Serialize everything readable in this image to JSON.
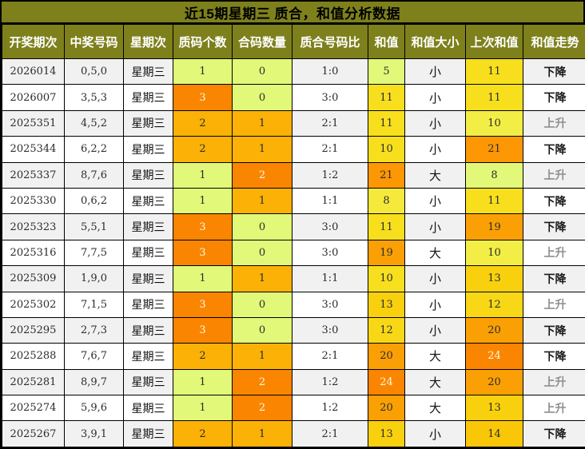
{
  "title": "近15期星期三 质合，和值分析数据",
  "palette": {
    "olive_header": "#7E801C",
    "stripe_gray": "#F1F1F1",
    "stripe_white": "#FFFFFF",
    "lime": "#E2F879",
    "yellow_8": "#F5E93C",
    "yellow_10": "#F2EE45",
    "yellow_11": "#F7DF1E",
    "yellow_12": "#F8D816",
    "gold_13": "#F9D00E",
    "gold_14": "#FAC708",
    "amber": "#FBB105",
    "orange_19_20": "#FBA004",
    "orange_21": "#FD9703",
    "deep_orange": "#FA8500",
    "trend_down_text": "#1A1A1A",
    "trend_up_text": "#8F8F8F",
    "header_text": "#FFFFFF",
    "title_text": "#000000"
  },
  "table": {
    "headers": [
      "开奖期次",
      "中奖号码",
      "星期次",
      "质码个数",
      "合码数量",
      "质合号码比",
      "和值",
      "和值大小",
      "上次和值",
      "和值走势"
    ],
    "rows": [
      {
        "period": "2026014",
        "numbers": "0,5,0",
        "week": "星期三",
        "prime": {
          "v": "1",
          "bg": "#E2F879"
        },
        "comp": {
          "v": "0",
          "bg": "#E2F879"
        },
        "ratio": "1:0",
        "sum": {
          "v": "5",
          "bg": "#E2F879"
        },
        "size": "小",
        "last": {
          "v": "11",
          "bg": "#F7DF1E"
        },
        "trend": "下降",
        "trend_dir": "down"
      },
      {
        "period": "2026007",
        "numbers": "3,5,3",
        "week": "星期三",
        "prime": {
          "v": "3",
          "bg": "#FA8500",
          "light": true
        },
        "comp": {
          "v": "0",
          "bg": "#E2F879"
        },
        "ratio": "3:0",
        "sum": {
          "v": "11",
          "bg": "#F7DF1E"
        },
        "size": "小",
        "last": {
          "v": "11",
          "bg": "#F7DF1E"
        },
        "trend": "下降",
        "trend_dir": "down"
      },
      {
        "period": "2025351",
        "numbers": "4,5,2",
        "week": "星期三",
        "prime": {
          "v": "2",
          "bg": "#FBB105"
        },
        "comp": {
          "v": "1",
          "bg": "#FBB105"
        },
        "ratio": "2:1",
        "sum": {
          "v": "11",
          "bg": "#F7DF1E"
        },
        "size": "小",
        "last": {
          "v": "10",
          "bg": "#F2EE45"
        },
        "trend": "上升",
        "trend_dir": "up"
      },
      {
        "period": "2025344",
        "numbers": "6,2,2",
        "week": "星期三",
        "prime": {
          "v": "2",
          "bg": "#FBB105"
        },
        "comp": {
          "v": "1",
          "bg": "#FBB105"
        },
        "ratio": "2:1",
        "sum": {
          "v": "10",
          "bg": "#F7DF1E"
        },
        "size": "小",
        "last": {
          "v": "21",
          "bg": "#FD9703"
        },
        "trend": "下降",
        "trend_dir": "down"
      },
      {
        "period": "2025337",
        "numbers": "8,7,6",
        "week": "星期三",
        "prime": {
          "v": "1",
          "bg": "#E2F879"
        },
        "comp": {
          "v": "2",
          "bg": "#FA8500",
          "light": true
        },
        "ratio": "1:2",
        "sum": {
          "v": "21",
          "bg": "#FD9703"
        },
        "size": "大",
        "last": {
          "v": "8",
          "bg": "#E2F879"
        },
        "trend": "上升",
        "trend_dir": "up"
      },
      {
        "period": "2025330",
        "numbers": "0,6,2",
        "week": "星期三",
        "prime": {
          "v": "1",
          "bg": "#E2F879"
        },
        "comp": {
          "v": "1",
          "bg": "#FBB105"
        },
        "ratio": "1:1",
        "sum": {
          "v": "8",
          "bg": "#F5E93C"
        },
        "size": "小",
        "last": {
          "v": "11",
          "bg": "#F7DF1E"
        },
        "trend": "下降",
        "trend_dir": "down"
      },
      {
        "period": "2025323",
        "numbers": "5,5,1",
        "week": "星期三",
        "prime": {
          "v": "3",
          "bg": "#FA8500",
          "light": true
        },
        "comp": {
          "v": "0",
          "bg": "#E2F879"
        },
        "ratio": "3:0",
        "sum": {
          "v": "11",
          "bg": "#F7DF1E"
        },
        "size": "小",
        "last": {
          "v": "19",
          "bg": "#FBA004"
        },
        "trend": "下降",
        "trend_dir": "down"
      },
      {
        "period": "2025316",
        "numbers": "7,7,5",
        "week": "星期三",
        "prime": {
          "v": "3",
          "bg": "#FA8500",
          "light": true
        },
        "comp": {
          "v": "0",
          "bg": "#E2F879"
        },
        "ratio": "3:0",
        "sum": {
          "v": "19",
          "bg": "#FBA004"
        },
        "size": "大",
        "last": {
          "v": "10",
          "bg": "#F2EE45"
        },
        "trend": "上升",
        "trend_dir": "up"
      },
      {
        "period": "2025309",
        "numbers": "1,9,0",
        "week": "星期三",
        "prime": {
          "v": "1",
          "bg": "#E2F879"
        },
        "comp": {
          "v": "1",
          "bg": "#FBB105"
        },
        "ratio": "1:1",
        "sum": {
          "v": "10",
          "bg": "#F7DF1E"
        },
        "size": "小",
        "last": {
          "v": "13",
          "bg": "#F9D00E"
        },
        "trend": "下降",
        "trend_dir": "down"
      },
      {
        "period": "2025302",
        "numbers": "7,1,5",
        "week": "星期三",
        "prime": {
          "v": "3",
          "bg": "#FA8500",
          "light": true
        },
        "comp": {
          "v": "0",
          "bg": "#E2F879"
        },
        "ratio": "3:0",
        "sum": {
          "v": "13",
          "bg": "#F9D00E"
        },
        "size": "小",
        "last": {
          "v": "12",
          "bg": "#F8D816"
        },
        "trend": "上升",
        "trend_dir": "up"
      },
      {
        "period": "2025295",
        "numbers": "2,7,3",
        "week": "星期三",
        "prime": {
          "v": "3",
          "bg": "#FA8500",
          "light": true
        },
        "comp": {
          "v": "0",
          "bg": "#E2F879"
        },
        "ratio": "3:0",
        "sum": {
          "v": "12",
          "bg": "#F8D816"
        },
        "size": "小",
        "last": {
          "v": "20",
          "bg": "#FBA004"
        },
        "trend": "下降",
        "trend_dir": "down"
      },
      {
        "period": "2025288",
        "numbers": "7,6,7",
        "week": "星期三",
        "prime": {
          "v": "2",
          "bg": "#FBB105"
        },
        "comp": {
          "v": "1",
          "bg": "#FBB105"
        },
        "ratio": "2:1",
        "sum": {
          "v": "20",
          "bg": "#FBA004"
        },
        "size": "大",
        "last": {
          "v": "24",
          "bg": "#FA8500",
          "light": true
        },
        "trend": "下降",
        "trend_dir": "down"
      },
      {
        "period": "2025281",
        "numbers": "8,9,7",
        "week": "星期三",
        "prime": {
          "v": "1",
          "bg": "#E2F879"
        },
        "comp": {
          "v": "2",
          "bg": "#FA8500",
          "light": true
        },
        "ratio": "1:2",
        "sum": {
          "v": "24",
          "bg": "#FA8500",
          "light": true
        },
        "size": "大",
        "last": {
          "v": "20",
          "bg": "#FBA004"
        },
        "trend": "上升",
        "trend_dir": "up"
      },
      {
        "period": "2025274",
        "numbers": "5,9,6",
        "week": "星期三",
        "prime": {
          "v": "1",
          "bg": "#E2F879"
        },
        "comp": {
          "v": "2",
          "bg": "#FA8500",
          "light": true
        },
        "ratio": "1:2",
        "sum": {
          "v": "20",
          "bg": "#FBA004"
        },
        "size": "大",
        "last": {
          "v": "13",
          "bg": "#F9D00E"
        },
        "trend": "上升",
        "trend_dir": "up"
      },
      {
        "period": "2025267",
        "numbers": "3,9,1",
        "week": "星期三",
        "prime": {
          "v": "2",
          "bg": "#FBB105"
        },
        "comp": {
          "v": "1",
          "bg": "#FBB105"
        },
        "ratio": "2:1",
        "sum": {
          "v": "13",
          "bg": "#F9D00E"
        },
        "size": "小",
        "last": {
          "v": "14",
          "bg": "#FAC708"
        },
        "trend": "下降",
        "trend_dir": "down"
      }
    ]
  },
  "chart_data": {
    "type": "table",
    "title": "近15期星期三 质合，和值分析数据",
    "columns": [
      "开奖期次",
      "中奖号码",
      "星期次",
      "质码个数",
      "合码数量",
      "质合号码比",
      "和值",
      "和值大小",
      "上次和值",
      "和值走势"
    ],
    "rows": [
      [
        "2026014",
        "0,5,0",
        "星期三",
        1,
        0,
        "1:0",
        5,
        "小",
        11,
        "下降"
      ],
      [
        "2026007",
        "3,5,3",
        "星期三",
        3,
        0,
        "3:0",
        11,
        "小",
        11,
        "下降"
      ],
      [
        "2025351",
        "4,5,2",
        "星期三",
        2,
        1,
        "2:1",
        11,
        "小",
        10,
        "上升"
      ],
      [
        "2025344",
        "6,2,2",
        "星期三",
        2,
        1,
        "2:1",
        10,
        "小",
        21,
        "下降"
      ],
      [
        "2025337",
        "8,7,6",
        "星期三",
        1,
        2,
        "1:2",
        21,
        "大",
        8,
        "上升"
      ],
      [
        "2025330",
        "0,6,2",
        "星期三",
        1,
        1,
        "1:1",
        8,
        "小",
        11,
        "下降"
      ],
      [
        "2025323",
        "5,5,1",
        "星期三",
        3,
        0,
        "3:0",
        11,
        "小",
        19,
        "下降"
      ],
      [
        "2025316",
        "7,7,5",
        "星期三",
        3,
        0,
        "3:0",
        19,
        "大",
        10,
        "上升"
      ],
      [
        "2025309",
        "1,9,0",
        "星期三",
        1,
        1,
        "1:1",
        10,
        "小",
        13,
        "下降"
      ],
      [
        "2025302",
        "7,1,5",
        "星期三",
        3,
        0,
        "3:0",
        13,
        "小",
        12,
        "上升"
      ],
      [
        "2025295",
        "2,7,3",
        "星期三",
        3,
        0,
        "3:0",
        12,
        "小",
        20,
        "下降"
      ],
      [
        "2025288",
        "7,6,7",
        "星期三",
        2,
        1,
        "2:1",
        20,
        "大",
        24,
        "下降"
      ],
      [
        "2025281",
        "8,9,7",
        "星期三",
        1,
        2,
        "1:2",
        24,
        "大",
        20,
        "上升"
      ],
      [
        "2025274",
        "5,9,6",
        "星期三",
        1,
        2,
        "1:2",
        20,
        "大",
        13,
        "上升"
      ],
      [
        "2025267",
        "3,9,1",
        "星期三",
        2,
        1,
        "2:1",
        13,
        "小",
        14,
        "下降"
      ]
    ]
  }
}
